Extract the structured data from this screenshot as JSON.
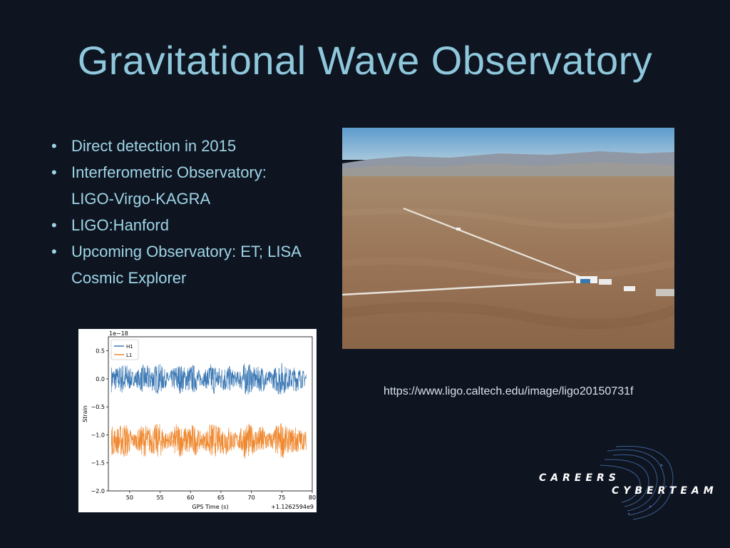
{
  "slide": {
    "title": "Gravitational Wave Observatory",
    "bullets": [
      {
        "text": "Direct detection in 2015"
      },
      {
        "text": "Interferometric Observatory:",
        "continuation": "LIGO-Virgo-KAGRA"
      },
      {
        "text": "LIGO:Hanford"
      },
      {
        "text": "Upcoming Observatory: ET; LISA",
        "continuation": "Cosmic Explorer"
      }
    ],
    "bullet_glyph": "•",
    "photo_caption_url": "https://www.ligo.caltech.edu/image/ligo20150731f"
  },
  "chart_data": {
    "type": "line",
    "title": "",
    "xlabel": "GPS Time (s)",
    "ylabel": "Strain",
    "y_scale_label": "1e−18",
    "x_offset_label": "+1.1262594e9",
    "xlim": [
      46.5,
      80
    ],
    "ylim": [
      -2.0,
      0.75
    ],
    "x_ticks": [
      50,
      55,
      60,
      65,
      70,
      75,
      80
    ],
    "y_ticks": [
      0.5,
      0.0,
      -0.5,
      -1.0,
      -1.5,
      -2.0
    ],
    "y_tick_labels": [
      "0.5",
      "0.0",
      "−0.5",
      "−1.0",
      "−1.5",
      "−2.0"
    ],
    "series": [
      {
        "name": "H1",
        "color": "#3b78b4",
        "x_range": [
          47,
          79
        ],
        "center": 0.0,
        "amplitude": 0.25
      },
      {
        "name": "L1",
        "color": "#ef8a32",
        "x_range": [
          47,
          79
        ],
        "center": -1.1,
        "amplitude": 0.28
      }
    ],
    "legend_position": "top-left"
  },
  "logo": {
    "line1": "CAREERS",
    "line2": "CYBERTEAM"
  }
}
